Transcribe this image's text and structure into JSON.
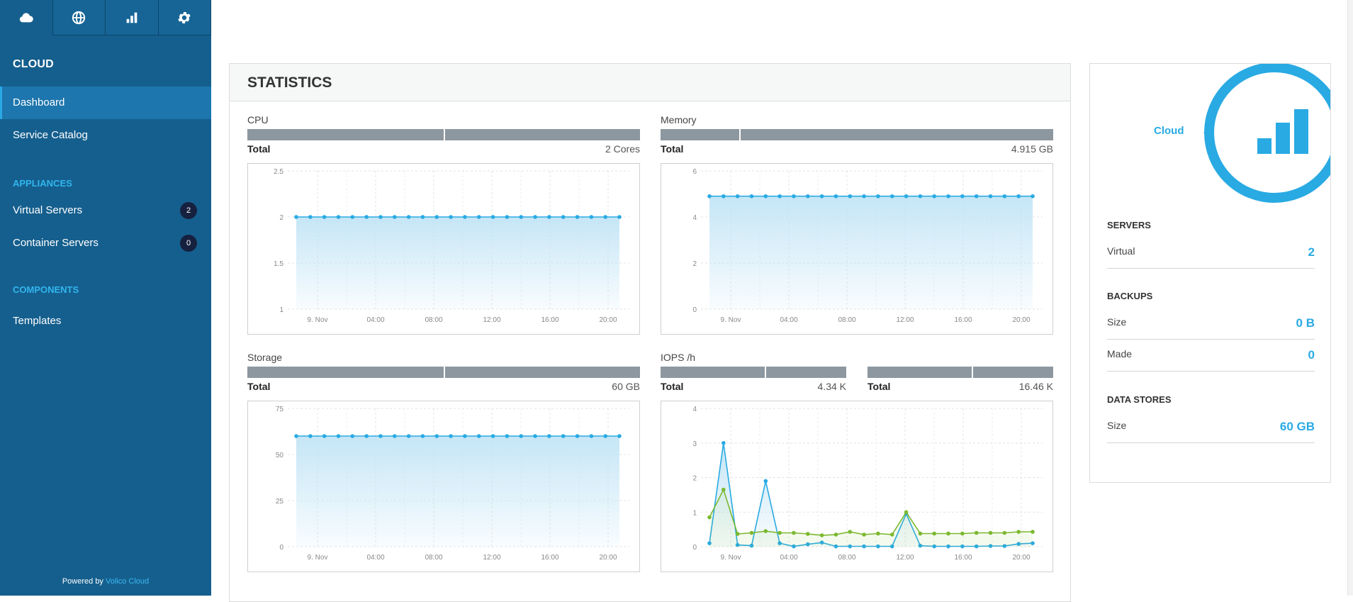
{
  "sidebar": {
    "top_tabs": [
      {
        "icon": "cloud-icon"
      },
      {
        "icon": "globe-icon"
      },
      {
        "icon": "bar-chart-icon"
      },
      {
        "icon": "gear-icon"
      }
    ],
    "title": "CLOUD",
    "items": [
      {
        "label": "Dashboard",
        "active": true
      },
      {
        "label": "Service Catalog"
      }
    ],
    "appliances_heading": "APPLIANCES",
    "appliances": [
      {
        "label": "Virtual Servers",
        "badge": "2"
      },
      {
        "label": "Container Servers",
        "badge": "0"
      }
    ],
    "components_heading": "COMPONENTS",
    "components": [
      {
        "label": "Templates"
      }
    ],
    "footer_prefix": "Powered by",
    "footer_link": "Volico Cloud"
  },
  "stats": {
    "title": "STATISTICS",
    "cpu": {
      "label": "CPU",
      "total_label": "Total",
      "total_value": "2 Cores",
      "bar_split": 0.5
    },
    "memory": {
      "label": "Memory",
      "total_label": "Total",
      "total_value": "4.915 GB",
      "bar_split": 0.2
    },
    "storage": {
      "label": "Storage",
      "total_label": "Total",
      "total_value": "60 GB",
      "bar_split": 0.5
    },
    "iops": {
      "label": "IOPS /h",
      "left": {
        "total_label": "Total",
        "total_value": "4.34 K",
        "bar_split": 0.56
      },
      "right": {
        "total_label": "Total",
        "total_value": "16.46 K",
        "bar_split": 0.56
      }
    }
  },
  "chart_data": [
    {
      "id": "cpu",
      "type": "area",
      "x_ticks": [
        "9. Nov",
        "04:00",
        "08:00",
        "12:00",
        "16:00",
        "20:00"
      ],
      "y_ticks": [
        "2.5",
        "2",
        "1.5",
        "1"
      ],
      "ylim": [
        1,
        2.5
      ],
      "series": [
        {
          "values": [
            2,
            2,
            2,
            2,
            2,
            2,
            2,
            2,
            2,
            2,
            2,
            2,
            2,
            2,
            2,
            2,
            2,
            2,
            2,
            2,
            2,
            2,
            2,
            2
          ]
        }
      ],
      "colors": [
        "#29aae3"
      ]
    },
    {
      "id": "memory",
      "type": "area",
      "x_ticks": [
        "9. Nov",
        "04:00",
        "08:00",
        "12:00",
        "16:00",
        "20:00"
      ],
      "y_ticks": [
        "6",
        "4",
        "2",
        "0"
      ],
      "ylim": [
        0,
        6
      ],
      "series": [
        {
          "values": [
            4.9,
            4.9,
            4.9,
            4.9,
            4.9,
            4.9,
            4.9,
            4.9,
            4.9,
            4.9,
            4.9,
            4.9,
            4.9,
            4.9,
            4.9,
            4.9,
            4.9,
            4.9,
            4.9,
            4.9,
            4.9,
            4.9,
            4.9,
            4.9
          ]
        }
      ],
      "colors": [
        "#29aae3"
      ]
    },
    {
      "id": "storage",
      "type": "area",
      "x_ticks": [
        "9. Nov",
        "04:00",
        "08:00",
        "12:00",
        "16:00",
        "20:00"
      ],
      "y_ticks": [
        "75",
        "50",
        "25",
        "0"
      ],
      "ylim": [
        0,
        75
      ],
      "series": [
        {
          "values": [
            60,
            60,
            60,
            60,
            60,
            60,
            60,
            60,
            60,
            60,
            60,
            60,
            60,
            60,
            60,
            60,
            60,
            60,
            60,
            60,
            60,
            60,
            60,
            60
          ]
        }
      ],
      "colors": [
        "#29aae3"
      ]
    },
    {
      "id": "iops",
      "type": "area",
      "x_ticks": [
        "9. Nov",
        "04:00",
        "08:00",
        "12:00",
        "16:00",
        "20:00"
      ],
      "y_ticks": [
        "4",
        "3",
        "2",
        "1",
        "0"
      ],
      "ylim": [
        0,
        4
      ],
      "series": [
        {
          "values": [
            0.1,
            3.0,
            0.05,
            0.03,
            1.9,
            0.1,
            0.01,
            0.07,
            0.12,
            0.01,
            0.01,
            0.01,
            0.01,
            0.01,
            0.95,
            0.03,
            0.01,
            0.01,
            0.01,
            0.01,
            0.02,
            0.02,
            0.08,
            0.1
          ]
        },
        {
          "values": [
            0.85,
            1.65,
            0.37,
            0.4,
            0.45,
            0.4,
            0.4,
            0.37,
            0.33,
            0.35,
            0.43,
            0.35,
            0.38,
            0.35,
            1.0,
            0.38,
            0.38,
            0.38,
            0.38,
            0.4,
            0.4,
            0.4,
            0.43,
            0.43
          ]
        }
      ],
      "colors": [
        "#29aae3",
        "#7bb92f"
      ]
    }
  ],
  "cloud_panel": {
    "label": "Cloud",
    "servers_heading": "SERVERS",
    "virtual_label": "Virtual",
    "virtual_value": "2",
    "backups_heading": "BACKUPS",
    "size_label": "Size",
    "size_value": "0 B",
    "made_label": "Made",
    "made_value": "0",
    "datastores_heading": "DATA STORES",
    "ds_size_label": "Size",
    "ds_size_value": "60 GB"
  }
}
